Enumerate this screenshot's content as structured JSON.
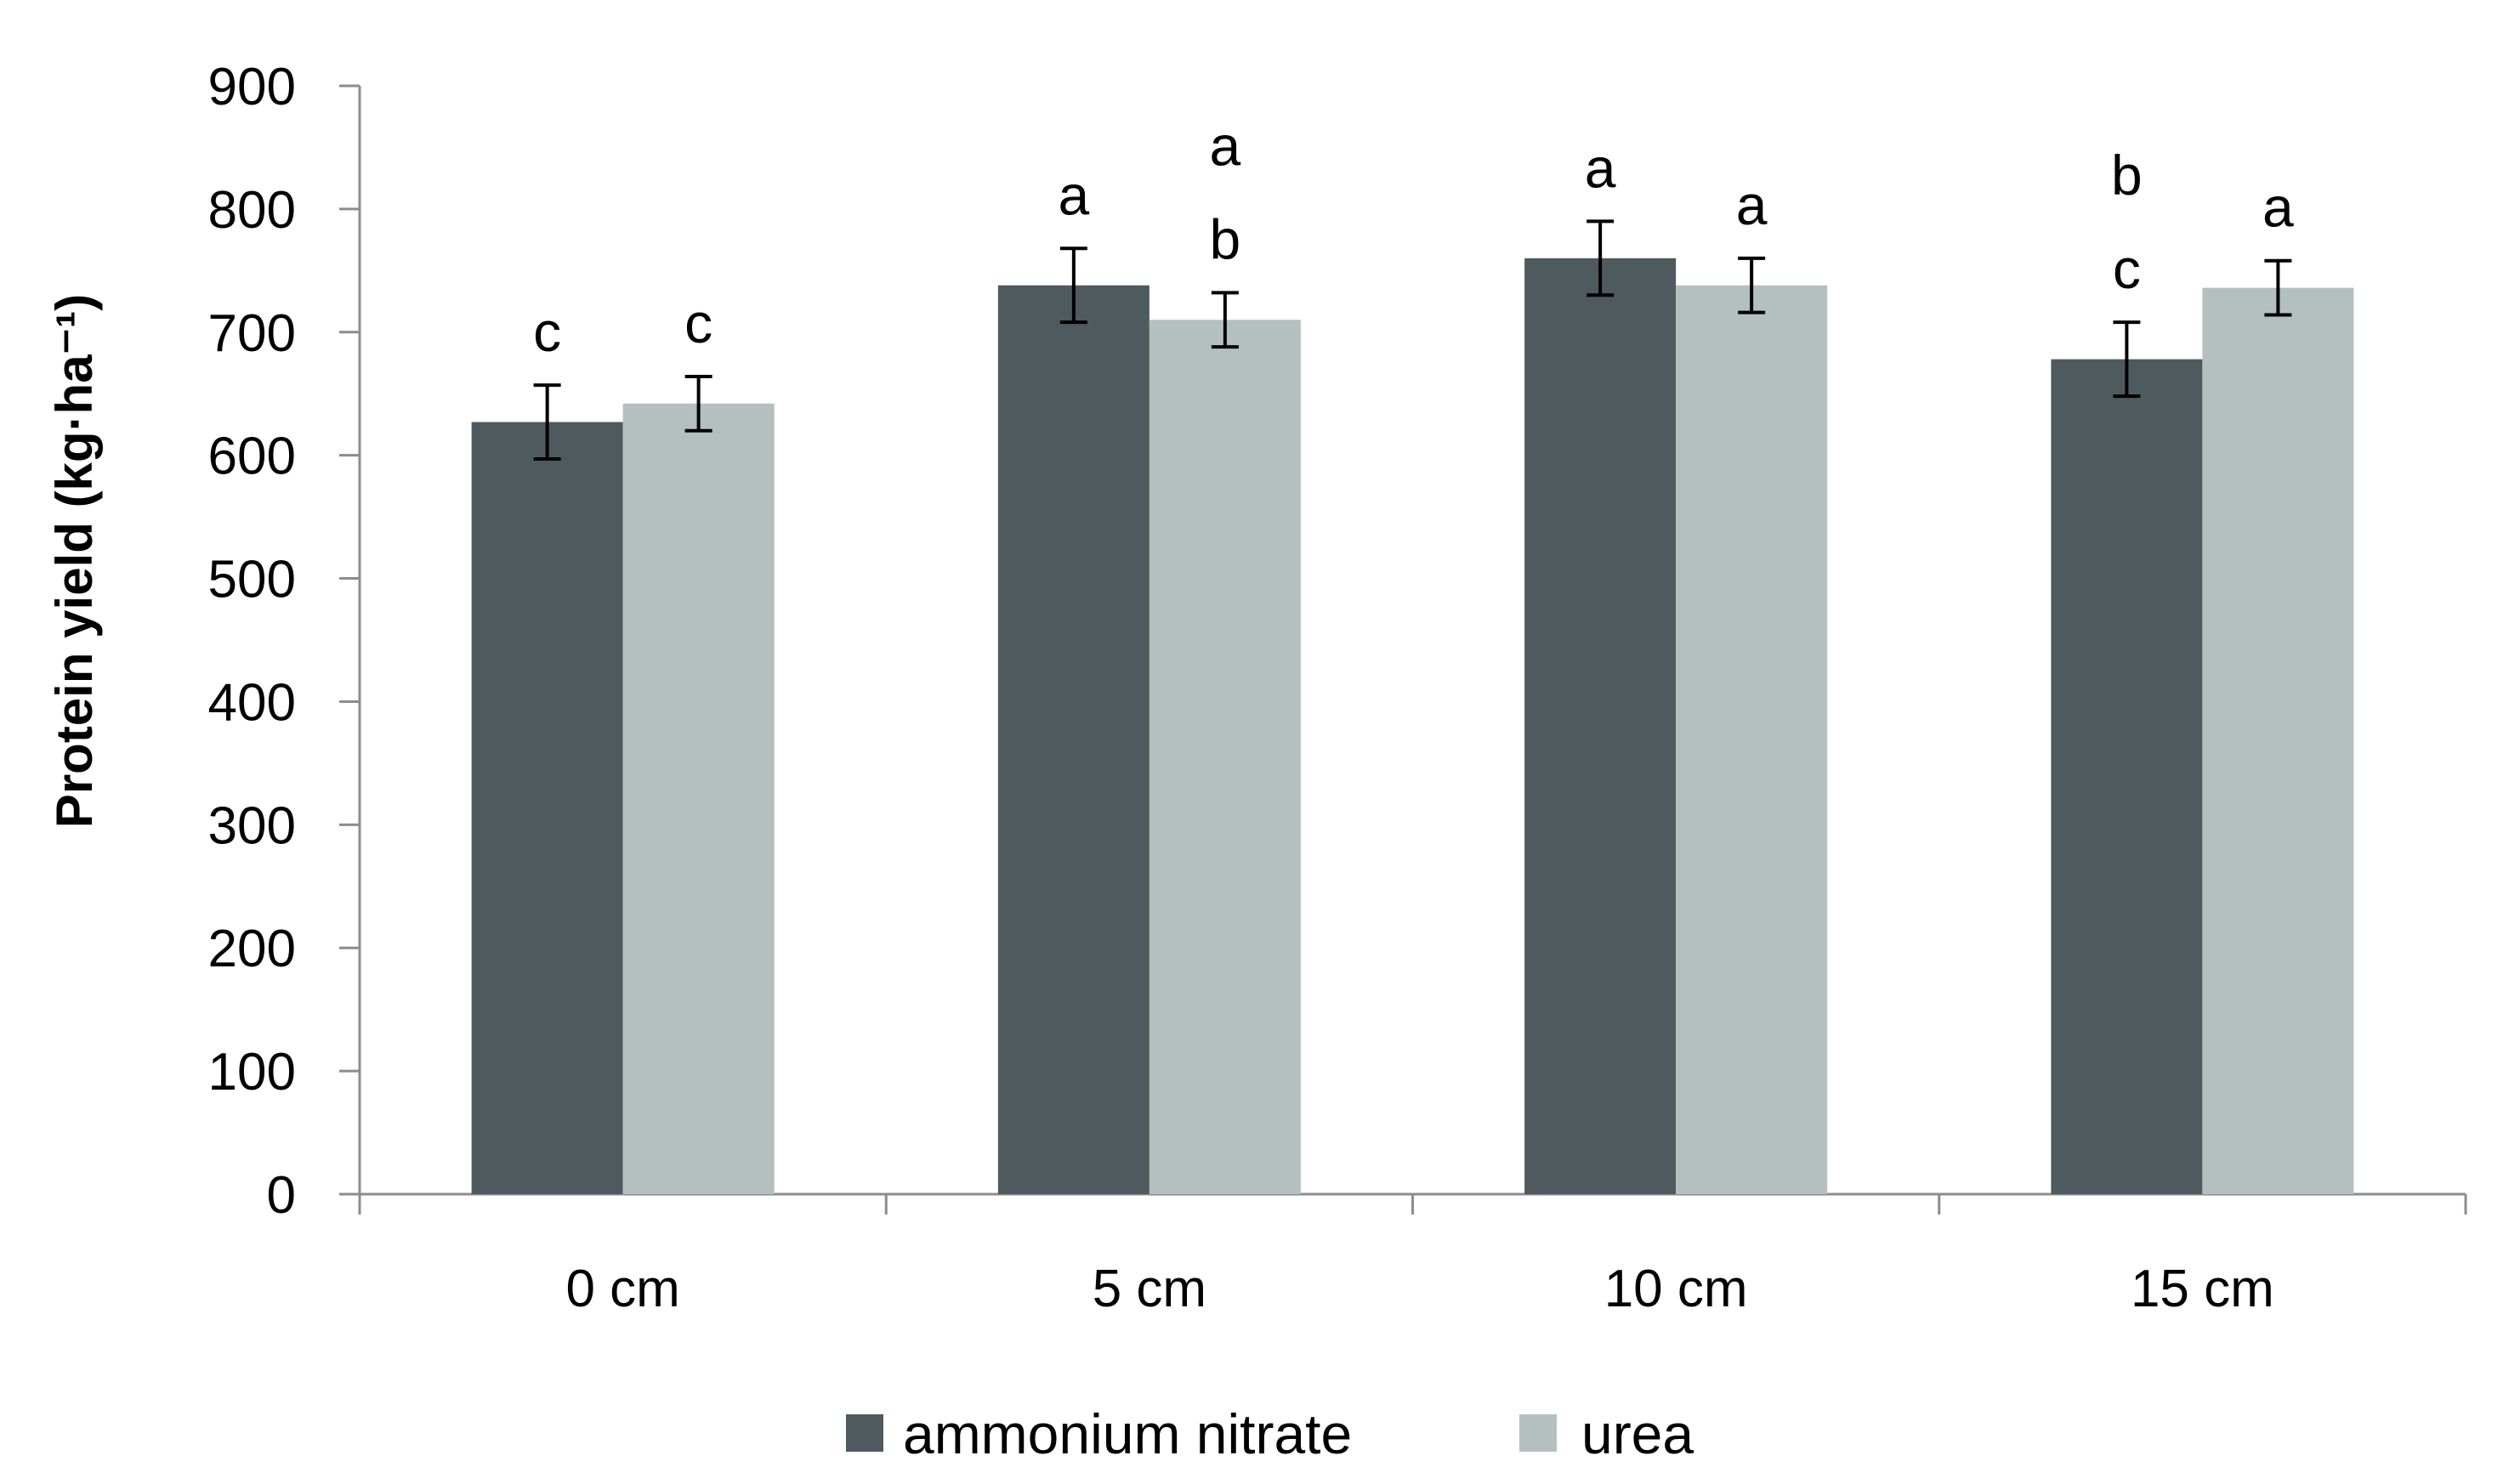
{
  "chart_data": {
    "type": "bar",
    "title": "",
    "xlabel": "",
    "ylabel": "Protein yield (kg·ha⁻¹)",
    "ylim": [
      0,
      900
    ],
    "yticks": [
      0,
      100,
      200,
      300,
      400,
      500,
      600,
      700,
      800,
      900
    ],
    "categories": [
      "0 cm",
      "5 cm",
      "10 cm",
      "15 cm"
    ],
    "series": [
      {
        "name": "ammonium nitrate",
        "color": "#4f5a5e",
        "values": [
          627,
          738,
          760,
          678
        ],
        "errors": [
          30,
          30,
          30,
          30
        ],
        "letters": [
          "c",
          "a",
          "a",
          "b\nc"
        ]
      },
      {
        "name": "urea",
        "color": "#b3c0bf",
        "values": [
          642,
          710,
          738,
          736
        ],
        "errors": [
          22,
          22,
          22,
          22
        ],
        "letters": [
          "c",
          "a\nb",
          "a",
          "a"
        ]
      }
    ],
    "legend_position": "bottom",
    "grid": false
  }
}
